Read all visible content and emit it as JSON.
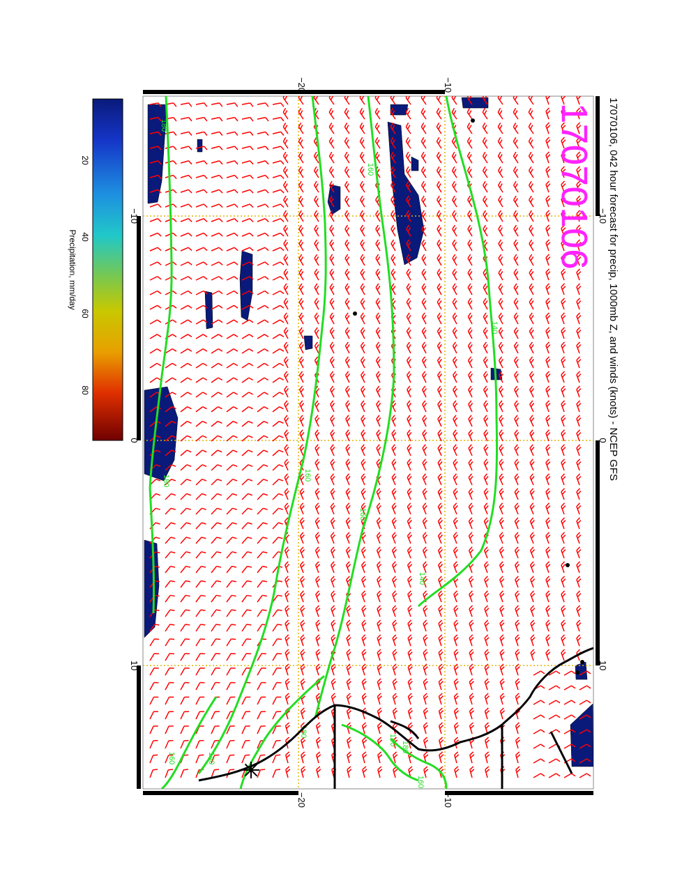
{
  "map": {
    "title": "17070106, 042 hour forecast for precip, 1000mb Z, and winds (knots) - NCEP GFS",
    "stamp": "17070106",
    "lon_ticks": [
      -10,
      0,
      10
    ],
    "lat_ticks": [
      -20,
      -10
    ],
    "lon_tick_labels": [
      "−10",
      "0",
      "10"
    ],
    "lat_tick_labels": [
      "−20",
      "−10"
    ],
    "contour_labels": [
      "180",
      "160",
      "140",
      "140",
      "160",
      "180",
      "160",
      "140",
      "160",
      "180",
      "180",
      "160",
      "140",
      "160",
      "140"
    ],
    "colors": {
      "wind_barb": "#ff0000",
      "height_contour": "#22dd22",
      "precip_low": "#0a1a7a",
      "gridline": "#e0b400",
      "coastline": "#000000",
      "stamp": "#ff22ff"
    }
  },
  "colorbar": {
    "label": "Precipitation, mm/day",
    "ticks": [
      "20",
      "40",
      "60",
      "80"
    ],
    "range": [
      0,
      100
    ]
  }
}
